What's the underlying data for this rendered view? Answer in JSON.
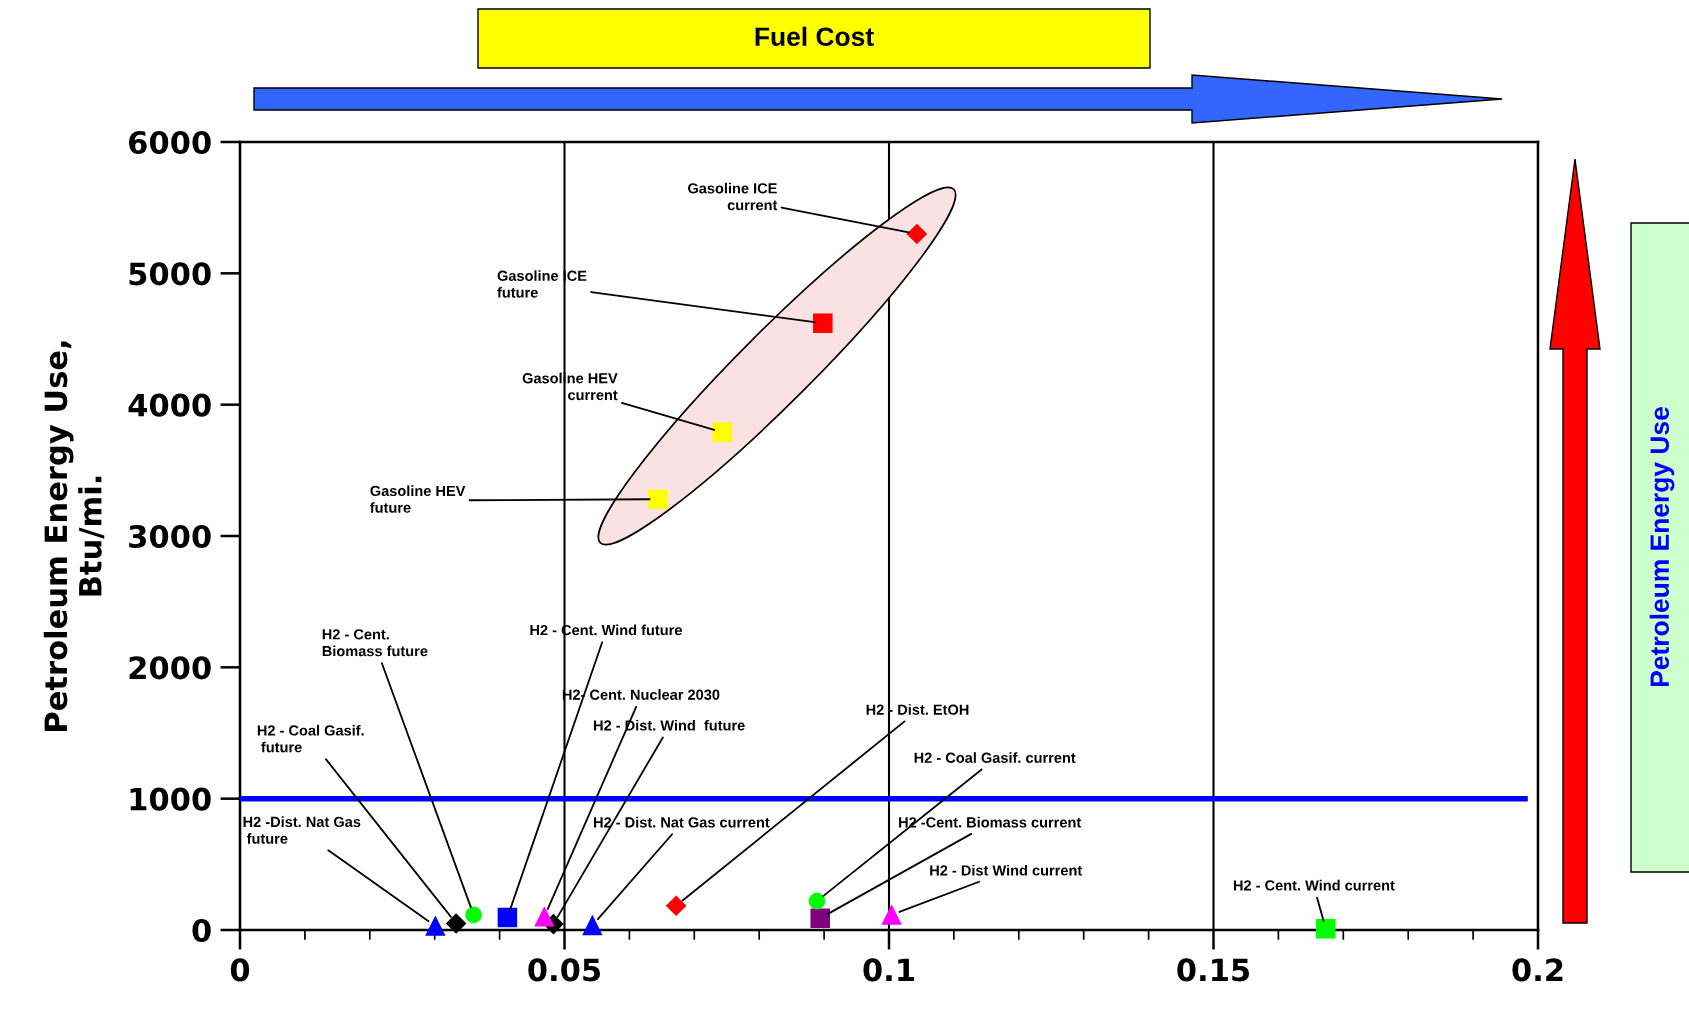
{
  "chart_data": {
    "type": "scatter",
    "ylabel": "Petroleum Energy Use,\nBtu/mi.",
    "xlim": [
      0,
      0.2
    ],
    "xticks": [
      0,
      0.05,
      0.1,
      0.15,
      0.2
    ],
    "ylim": [
      0,
      6000
    ],
    "yticks": [
      0,
      1000,
      2000,
      3000,
      4000,
      5000,
      6000
    ],
    "grid": "x",
    "series": [
      {
        "marker": "diamond",
        "x": [
          0.1043,
          0.0672,
          0.0333,
          0.0483
        ],
        "values": [
          5300,
          185,
          50,
          45
        ],
        "colors": [
          "#ff0000",
          "#ff0000",
          "#000000",
          "#000000"
        ]
      },
      {
        "marker": "square",
        "x": [
          0.0898,
          0.0743,
          0.0644,
          0.0412,
          0.0894,
          0.1673
        ],
        "values": [
          4620,
          3790,
          3280,
          95,
          90,
          10
        ],
        "colors": [
          "#ff0000",
          "#ffff00",
          "#ffff00",
          "#0000ff",
          "#800080",
          "#00ff00"
        ]
      },
      {
        "marker": "triangle",
        "x": [
          0.0301,
          0.0469,
          0.0543,
          0.1004
        ],
        "values": [
          30,
          100,
          35,
          115
        ],
        "colors": [
          "#0000ff",
          "#ff00ff",
          "#0000ff",
          "#ff00ff"
        ]
      },
      {
        "marker": "circle",
        "x": [
          0.036,
          0.0889
        ],
        "values": [
          115,
          220
        ],
        "colors": [
          "#00ff00",
          "#00ff00"
        ]
      }
    ],
    "ref_lines": [
      {
        "axis": "y",
        "value": 1000,
        "color": "#0000ff"
      }
    ],
    "annotations": [
      {
        "text": "Gasoline ICE\ncurrent",
        "x": 0.1043,
        "y": 5300
      },
      {
        "text": "Gasoline ICE\nfuture",
        "x": 0.0898,
        "y": 4620
      },
      {
        "text": "Gasoline HEV\ncurrent",
        "x": 0.0743,
        "y": 3790
      },
      {
        "text": "Gasoline HEV\nfuture",
        "x": 0.0644,
        "y": 3280
      },
      {
        "text": "H2 - Cent.\nBiomass future",
        "x": 0.036,
        "y": 115
      },
      {
        "text": "H2 - Cent. Wind future",
        "x": 0.0412,
        "y": 95
      },
      {
        "text": "H2- Cent. Nuclear 2030",
        "x": 0.0469,
        "y": 100
      },
      {
        "text": "H2 - Coal Gasif.\n future",
        "x": 0.0333,
        "y": 50
      },
      {
        "text": "H2 - Dist. Wind  future",
        "x": 0.0483,
        "y": 45
      },
      {
        "text": "H2 - Dist. EtOH",
        "x": 0.0672,
        "y": 185
      },
      {
        "text": "H2 - Coal Gasif. current",
        "x": 0.0889,
        "y": 220
      },
      {
        "text": "H2 -Dist. Nat Gas\n future",
        "x": 0.0301,
        "y": 30
      },
      {
        "text": "H2 - Dist. Nat Gas current",
        "x": 0.0543,
        "y": 35
      },
      {
        "text": "H2 -Cent. Biomass current",
        "x": 0.0894,
        "y": 90
      },
      {
        "text": "H2 - Dist Wind current",
        "x": 0.1004,
        "y": 115
      },
      {
        "text": "H2 - Cent. Wind current",
        "x": 0.1673,
        "y": 10
      },
      "Fuel Cost",
      "Petroleum Energy Use"
    ]
  }
}
